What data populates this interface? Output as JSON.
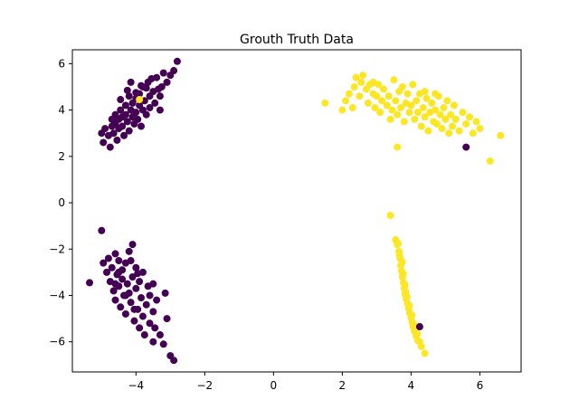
{
  "chart_data": {
    "type": "scatter",
    "title": "Grouth Truth Data",
    "xlabel": "",
    "ylabel": "",
    "xlim": [
      -5.85,
      7.2
    ],
    "ylim": [
      -7.3,
      6.6
    ],
    "xticks": [
      -4,
      -2,
      0,
      2,
      4,
      6
    ],
    "xtick_labels": [
      "−4",
      "−2",
      "0",
      "2",
      "4",
      "6"
    ],
    "yticks": [
      -6,
      -4,
      -2,
      0,
      2,
      4,
      6
    ],
    "ytick_labels": [
      "−6",
      "−4",
      "−2",
      "0",
      "2",
      "4",
      "6"
    ],
    "grid": false,
    "classes": [
      {
        "id": 0,
        "color": "#440154"
      },
      {
        "id": 1,
        "color": "#fde725"
      }
    ],
    "points": [
      [
        -5.0,
        3.0,
        0
      ],
      [
        -4.95,
        2.6,
        0
      ],
      [
        -4.9,
        3.2,
        0
      ],
      [
        -4.8,
        2.9,
        0
      ],
      [
        -4.75,
        2.4,
        0
      ],
      [
        -4.7,
        3.6,
        0
      ],
      [
        -4.7,
        3.3,
        0
      ],
      [
        -4.65,
        3.0,
        0
      ],
      [
        -4.6,
        3.8,
        0
      ],
      [
        -4.6,
        3.4,
        0
      ],
      [
        -4.55,
        2.7,
        0
      ],
      [
        -4.5,
        3.6,
        0
      ],
      [
        -4.5,
        3.2,
        0
      ],
      [
        -4.45,
        4.0,
        0
      ],
      [
        -4.4,
        3.7,
        0
      ],
      [
        -4.4,
        3.3,
        0
      ],
      [
        -4.35,
        2.9,
        0
      ],
      [
        -4.3,
        4.2,
        0
      ],
      [
        -4.3,
        3.8,
        0
      ],
      [
        -4.25,
        3.5,
        0
      ],
      [
        -4.2,
        4.6,
        0
      ],
      [
        -4.2,
        3.1,
        0
      ],
      [
        -4.15,
        4.0,
        0
      ],
      [
        -4.1,
        3.7,
        0
      ],
      [
        -4.1,
        4.3,
        0
      ],
      [
        -4.05,
        3.4,
        0
      ],
      [
        -4.0,
        4.5,
        0
      ],
      [
        -4.0,
        3.9,
        0
      ],
      [
        -3.95,
        3.6,
        0
      ],
      [
        -3.9,
        4.7,
        0
      ],
      [
        -3.9,
        4.2,
        0
      ],
      [
        -3.85,
        3.3,
        0
      ],
      [
        -3.8,
        5.0,
        0
      ],
      [
        -3.8,
        4.0,
        0
      ],
      [
        -3.75,
        4.4,
        0
      ],
      [
        -3.7,
        3.8,
        0
      ],
      [
        -3.65,
        5.2,
        0
      ],
      [
        -3.6,
        4.6,
        0
      ],
      [
        -3.6,
        4.1,
        0
      ],
      [
        -3.5,
        4.8,
        0
      ],
      [
        -3.45,
        4.3,
        0
      ],
      [
        -3.4,
        5.4,
        0
      ],
      [
        -3.35,
        4.9,
        0
      ],
      [
        -3.3,
        4.0,
        0
      ],
      [
        -3.25,
        5.0,
        0
      ],
      [
        -3.2,
        5.6,
        0
      ],
      [
        -3.1,
        5.2,
        0
      ],
      [
        -3.0,
        5.5,
        0
      ],
      [
        -2.9,
        5.7,
        0
      ],
      [
        -2.8,
        6.1,
        0
      ],
      [
        -4.15,
        5.2,
        0
      ],
      [
        -3.85,
        5.05,
        0
      ],
      [
        -4.25,
        4.85,
        0
      ],
      [
        -3.55,
        5.35,
        0
      ],
      [
        -4.45,
        4.45,
        0
      ],
      [
        -3.3,
        4.6,
        0
      ],
      [
        -3.7,
        4.95,
        0
      ],
      [
        -4.0,
        4.75,
        0
      ],
      [
        -3.9,
        4.45,
        1
      ],
      [
        -5.0,
        -1.2,
        0
      ],
      [
        -5.35,
        -3.45,
        0
      ],
      [
        -4.95,
        -2.6,
        0
      ],
      [
        -4.85,
        -3.0,
        0
      ],
      [
        -4.8,
        -2.4,
        0
      ],
      [
        -4.75,
        -3.4,
        0
      ],
      [
        -4.7,
        -2.8,
        0
      ],
      [
        -4.65,
        -3.8,
        0
      ],
      [
        -4.6,
        -2.2,
        0
      ],
      [
        -4.6,
        -4.2,
        0
      ],
      [
        -4.55,
        -3.1,
        0
      ],
      [
        -4.5,
        -2.5,
        0
      ],
      [
        -4.5,
        -3.6,
        0
      ],
      [
        -4.45,
        -4.5,
        0
      ],
      [
        -4.4,
        -2.9,
        0
      ],
      [
        -4.4,
        -3.3,
        0
      ],
      [
        -4.35,
        -4.0,
        0
      ],
      [
        -4.3,
        -2.6,
        0
      ],
      [
        -4.3,
        -4.8,
        0
      ],
      [
        -4.25,
        -3.5,
        0
      ],
      [
        -4.2,
        -2.1,
        0
      ],
      [
        -4.2,
        -3.9,
        0
      ],
      [
        -4.15,
        -4.3,
        0
      ],
      [
        -4.1,
        -1.8,
        0
      ],
      [
        -4.1,
        -3.2,
        0
      ],
      [
        -4.05,
        -5.1,
        0
      ],
      [
        -4.0,
        -3.7,
        0
      ],
      [
        -4.0,
        -2.8,
        0
      ],
      [
        -3.95,
        -4.6,
        0
      ],
      [
        -3.9,
        -5.4,
        0
      ],
      [
        -3.9,
        -3.4,
        0
      ],
      [
        -3.85,
        -4.1,
        0
      ],
      [
        -3.8,
        -4.9,
        0
      ],
      [
        -3.8,
        -3.0,
        0
      ],
      [
        -3.75,
        -5.7,
        0
      ],
      [
        -3.7,
        -4.4,
        0
      ],
      [
        -3.65,
        -3.6,
        0
      ],
      [
        -3.6,
        -5.2,
        0
      ],
      [
        -3.6,
        -4.0,
        0
      ],
      [
        -3.5,
        -4.7,
        0
      ],
      [
        -3.5,
        -3.5,
        0
      ],
      [
        -3.45,
        -5.4,
        0
      ],
      [
        -3.4,
        -4.2,
        0
      ],
      [
        -3.3,
        -5.7,
        0
      ],
      [
        -3.2,
        -6.1,
        0
      ],
      [
        -3.1,
        -5.0,
        0
      ],
      [
        -3.0,
        -6.6,
        0
      ],
      [
        -2.9,
        -6.8,
        0
      ],
      [
        -3.15,
        -3.9,
        0
      ],
      [
        -3.5,
        -6.0,
        0
      ],
      [
        -4.5,
        -3.0,
        0
      ],
      [
        -4.3,
        -4.0,
        0
      ],
      [
        -4.15,
        -2.5,
        0
      ],
      [
        -3.95,
        -3.05,
        0
      ],
      [
        -4.6,
        -3.5,
        0
      ],
      [
        -4.05,
        -4.6,
        0
      ],
      [
        1.5,
        4.3,
        1
      ],
      [
        2.0,
        4.0,
        1
      ],
      [
        2.1,
        4.4,
        1
      ],
      [
        2.2,
        4.7,
        1
      ],
      [
        2.3,
        4.1,
        1
      ],
      [
        2.35,
        5.0,
        1
      ],
      [
        2.4,
        5.4,
        1
      ],
      [
        2.5,
        4.6,
        1
      ],
      [
        2.55,
        5.2,
        1
      ],
      [
        2.6,
        5.5,
        1
      ],
      [
        2.7,
        4.9,
        1
      ],
      [
        2.75,
        4.3,
        1
      ],
      [
        2.8,
        5.1,
        1
      ],
      [
        2.9,
        4.7,
        1
      ],
      [
        2.95,
        4.1,
        1
      ],
      [
        3.0,
        4.6,
        1
      ],
      [
        3.05,
        5.1,
        1
      ],
      [
        3.1,
        3.9,
        1
      ],
      [
        3.15,
        4.4,
        1
      ],
      [
        3.2,
        4.9,
        1
      ],
      [
        3.3,
        4.2,
        1
      ],
      [
        3.35,
        4.6,
        1
      ],
      [
        3.4,
        3.6,
        1
      ],
      [
        3.45,
        4.0,
        1
      ],
      [
        3.5,
        5.3,
        1
      ],
      [
        3.55,
        4.4,
        1
      ],
      [
        3.6,
        3.8,
        1
      ],
      [
        3.65,
        4.8,
        1
      ],
      [
        3.7,
        4.1,
        1
      ],
      [
        3.75,
        5.0,
        1
      ],
      [
        3.8,
        3.5,
        1
      ],
      [
        3.85,
        4.3,
        1
      ],
      [
        3.9,
        4.7,
        1
      ],
      [
        3.95,
        3.9,
        1
      ],
      [
        4.0,
        4.2,
        1
      ],
      [
        4.05,
        5.1,
        1
      ],
      [
        4.1,
        3.6,
        1
      ],
      [
        4.15,
        4.4,
        1
      ],
      [
        4.2,
        3.9,
        1
      ],
      [
        4.25,
        4.7,
        1
      ],
      [
        4.3,
        3.3,
        1
      ],
      [
        4.35,
        4.1,
        1
      ],
      [
        4.4,
        3.7,
        1
      ],
      [
        4.45,
        4.5,
        1
      ],
      [
        4.5,
        3.1,
        1
      ],
      [
        4.55,
        3.9,
        1
      ],
      [
        4.6,
        4.3,
        1
      ],
      [
        4.65,
        3.5,
        1
      ],
      [
        4.7,
        4.0,
        1
      ],
      [
        4.75,
        3.4,
        1
      ],
      [
        4.8,
        4.6,
        1
      ],
      [
        4.85,
        3.8,
        1
      ],
      [
        4.9,
        3.2,
        1
      ],
      [
        4.95,
        4.1,
        1
      ],
      [
        5.0,
        3.6,
        1
      ],
      [
        5.05,
        4.4,
        1
      ],
      [
        5.1,
        3.0,
        1
      ],
      [
        5.15,
        3.8,
        1
      ],
      [
        5.2,
        3.3,
        1
      ],
      [
        5.25,
        4.2,
        1
      ],
      [
        5.3,
        3.6,
        1
      ],
      [
        5.4,
        3.1,
        1
      ],
      [
        5.5,
        3.9,
        1
      ],
      [
        5.6,
        3.4,
        1
      ],
      [
        5.7,
        3.7,
        1
      ],
      [
        5.8,
        3.0,
        1
      ],
      [
        5.9,
        3.5,
        1
      ],
      [
        6.0,
        3.2,
        1
      ],
      [
        6.3,
        1.8,
        1
      ],
      [
        6.6,
        2.9,
        1
      ],
      [
        3.6,
        2.4,
        1
      ],
      [
        4.4,
        4.8,
        1
      ],
      [
        2.9,
        5.2,
        1
      ],
      [
        4.7,
        4.7,
        1
      ],
      [
        5.6,
        2.4,
        0
      ],
      [
        3.4,
        -0.55,
        1
      ],
      [
        3.55,
        -1.6,
        1
      ],
      [
        3.6,
        -1.8,
        1
      ],
      [
        3.65,
        -2.1,
        1
      ],
      [
        3.68,
        -2.4,
        1
      ],
      [
        3.7,
        -2.7,
        1
      ],
      [
        3.72,
        -2.95,
        1
      ],
      [
        3.75,
        -3.2,
        1
      ],
      [
        3.78,
        -3.45,
        1
      ],
      [
        3.8,
        -3.7,
        1
      ],
      [
        3.83,
        -3.95,
        1
      ],
      [
        3.86,
        -4.15,
        1
      ],
      [
        3.9,
        -4.35,
        1
      ],
      [
        3.93,
        -4.55,
        1
      ],
      [
        3.96,
        -4.75,
        1
      ],
      [
        4.0,
        -4.95,
        1
      ],
      [
        4.03,
        -5.15,
        1
      ],
      [
        4.06,
        -5.35,
        1
      ],
      [
        4.1,
        -5.55,
        1
      ],
      [
        4.15,
        -5.75,
        1
      ],
      [
        4.2,
        -5.95,
        1
      ],
      [
        4.3,
        -6.2,
        1
      ],
      [
        4.4,
        -6.5,
        1
      ],
      [
        3.62,
        -1.75,
        1
      ],
      [
        3.74,
        -2.55,
        1
      ],
      [
        3.77,
        -3.05,
        1
      ],
      [
        3.82,
        -3.55,
        1
      ],
      [
        3.88,
        -4.05,
        1
      ],
      [
        3.95,
        -4.45,
        1
      ],
      [
        4.02,
        -4.85,
        1
      ],
      [
        4.08,
        -5.25,
        1
      ],
      [
        4.18,
        -5.65,
        1
      ],
      [
        4.25,
        -6.0,
        1
      ],
      [
        3.66,
        -2.25,
        1
      ],
      [
        3.84,
        -3.85,
        1
      ],
      [
        4.25,
        -5.35,
        0
      ]
    ]
  }
}
